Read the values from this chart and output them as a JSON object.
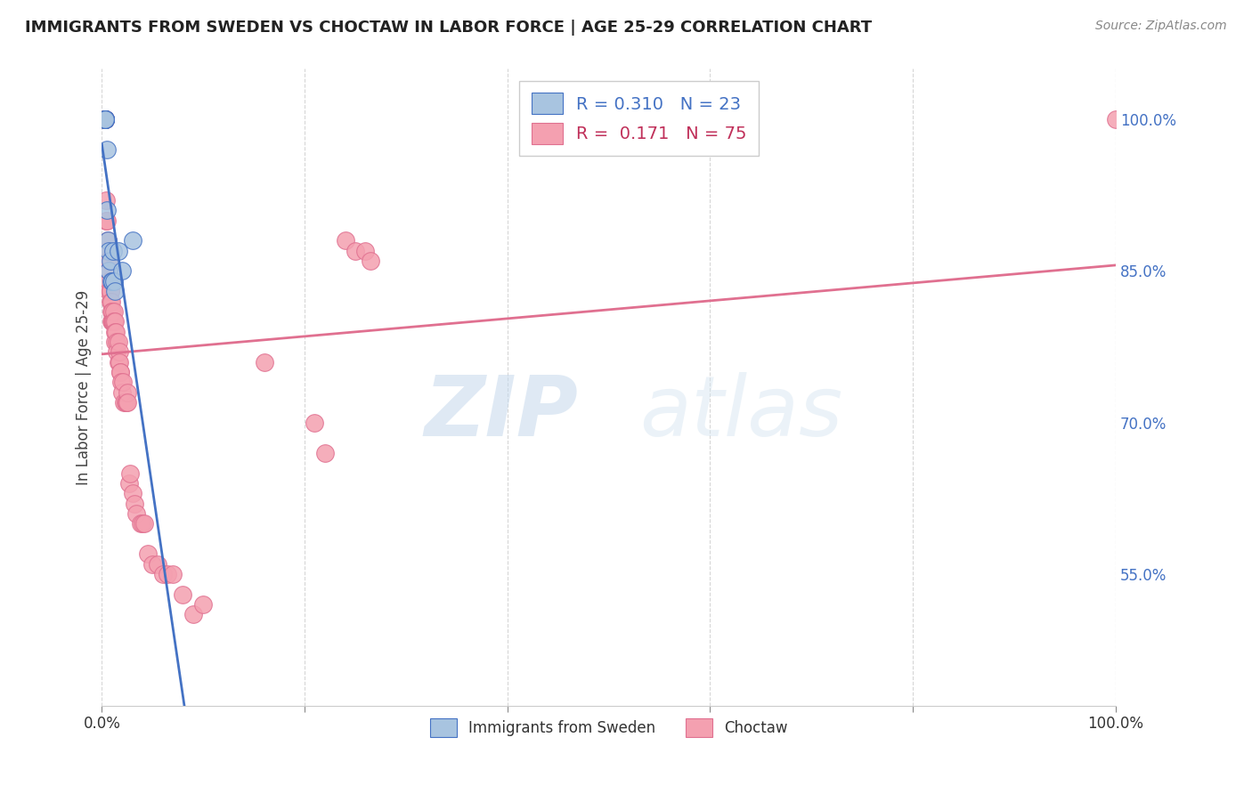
{
  "title": "IMMIGRANTS FROM SWEDEN VS CHOCTAW IN LABOR FORCE | AGE 25-29 CORRELATION CHART",
  "source": "Source: ZipAtlas.com",
  "ylabel": "In Labor Force | Age 25-29",
  "legend_label1": "Immigrants from Sweden",
  "legend_label2": "Choctaw",
  "r1": 0.31,
  "n1": 23,
  "r2": 0.171,
  "n2": 75,
  "color1": "#a8c4e0",
  "color2": "#f4a0b0",
  "trendline1_color": "#4472c4",
  "trendline2_color": "#e07090",
  "xlim": [
    0,
    1
  ],
  "ylim": [
    0.42,
    1.05
  ],
  "ytick_positions": [
    0.55,
    0.7,
    0.85,
    1.0
  ],
  "yticklabels": [
    "55.0%",
    "70.0%",
    "85.0%",
    "100.0%"
  ],
  "sweden_x": [
    0.003,
    0.003,
    0.003,
    0.003,
    0.003,
    0.003,
    0.003,
    0.003,
    0.003,
    0.005,
    0.005,
    0.006,
    0.007,
    0.007,
    0.008,
    0.009,
    0.01,
    0.011,
    0.012,
    0.013,
    0.016,
    0.02,
    0.03
  ],
  "sweden_y": [
    1.0,
    1.0,
    1.0,
    1.0,
    1.0,
    1.0,
    1.0,
    1.0,
    1.0,
    0.97,
    0.91,
    0.88,
    0.87,
    0.85,
    0.86,
    0.84,
    0.84,
    0.87,
    0.84,
    0.83,
    0.87,
    0.85,
    0.88
  ],
  "choctaw_x": [
    0.003,
    0.003,
    0.003,
    0.003,
    0.003,
    0.003,
    0.003,
    0.003,
    0.004,
    0.004,
    0.004,
    0.005,
    0.006,
    0.006,
    0.007,
    0.007,
    0.007,
    0.008,
    0.008,
    0.008,
    0.009,
    0.009,
    0.009,
    0.01,
    0.01,
    0.01,
    0.011,
    0.011,
    0.012,
    0.012,
    0.013,
    0.013,
    0.013,
    0.014,
    0.015,
    0.015,
    0.016,
    0.016,
    0.017,
    0.017,
    0.018,
    0.018,
    0.019,
    0.02,
    0.021,
    0.022,
    0.023,
    0.024,
    0.025,
    0.025,
    0.027,
    0.028,
    0.03,
    0.032,
    0.034,
    0.038,
    0.04,
    0.042,
    0.045,
    0.05,
    0.055,
    0.06,
    0.065,
    0.07,
    0.08,
    0.09,
    0.1,
    0.16,
    0.21,
    0.22,
    0.24,
    0.25,
    0.26,
    0.265,
    1.0
  ],
  "choctaw_y": [
    1.0,
    1.0,
    1.0,
    1.0,
    1.0,
    1.0,
    1.0,
    1.0,
    0.92,
    0.9,
    0.87,
    0.9,
    0.88,
    0.86,
    0.85,
    0.84,
    0.83,
    0.83,
    0.83,
    0.82,
    0.82,
    0.81,
    0.8,
    0.81,
    0.8,
    0.8,
    0.8,
    0.8,
    0.81,
    0.8,
    0.8,
    0.79,
    0.78,
    0.79,
    0.78,
    0.77,
    0.78,
    0.76,
    0.77,
    0.76,
    0.75,
    0.75,
    0.74,
    0.73,
    0.74,
    0.72,
    0.72,
    0.72,
    0.73,
    0.72,
    0.64,
    0.65,
    0.63,
    0.62,
    0.61,
    0.6,
    0.6,
    0.6,
    0.57,
    0.56,
    0.56,
    0.55,
    0.55,
    0.55,
    0.53,
    0.51,
    0.52,
    0.76,
    0.7,
    0.67,
    0.88,
    0.87,
    0.87,
    0.86,
    1.0
  ],
  "watermark_zip": "ZIP",
  "watermark_atlas": "atlas",
  "background_color": "#ffffff",
  "grid_color": "#cccccc"
}
